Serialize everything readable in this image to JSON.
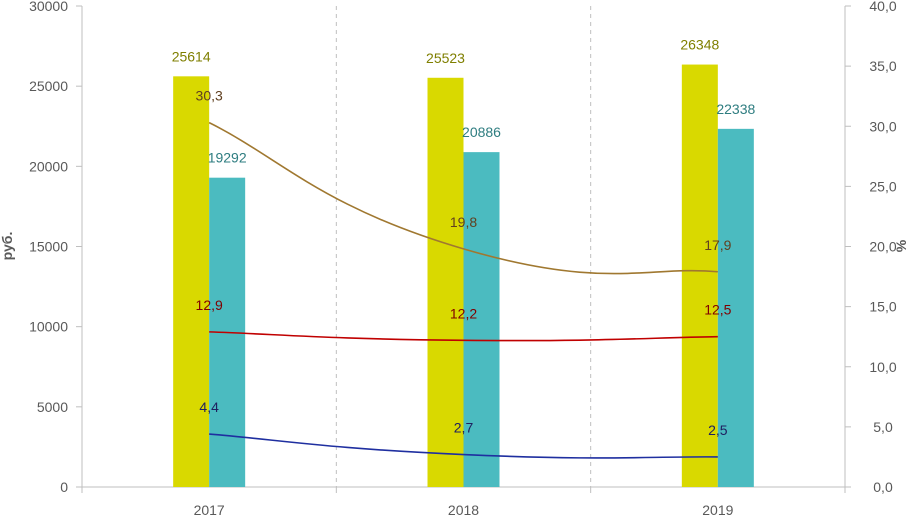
{
  "chart_data": {
    "type": "bar",
    "categories": [
      "2017",
      "2018",
      "2019"
    ],
    "ylabel": "руб.",
    "ylim": [
      0,
      30000
    ],
    "yticks": [
      0,
      5000,
      10000,
      15000,
      20000,
      25000,
      30000
    ],
    "y2label": "%",
    "y2lim": [
      0,
      40
    ],
    "y2ticks": [
      "0,0",
      "5,0",
      "10,0",
      "15,0",
      "20,0",
      "25,0",
      "30,0",
      "35,0",
      "40,0"
    ],
    "bar_series": [
      {
        "values": [
          25614,
          25523,
          26348
        ],
        "labels": [
          "25614",
          "25523",
          "26348"
        ],
        "color": "#d9d900",
        "label_color": "#7f7f00"
      },
      {
        "values": [
          19292,
          20886,
          22338
        ],
        "labels": [
          "19292",
          "20886",
          "22338"
        ],
        "color": "#4bbbc0",
        "label_color": "#2e7d80"
      }
    ],
    "line_series": [
      {
        "values": [
          30.3,
          19.8,
          17.9
        ],
        "labels": [
          "30,3",
          "19,8",
          "17,9"
        ],
        "color": "#a07830",
        "label_color": "#604020"
      },
      {
        "values": [
          12.9,
          12.2,
          12.5
        ],
        "labels": [
          "12,9",
          "12,2",
          "12,5"
        ],
        "color": "#c00000",
        "label_color": "#800000"
      },
      {
        "values": [
          4.4,
          2.7,
          2.5
        ],
        "labels": [
          "4,4",
          "2,7",
          "2,5"
        ],
        "color": "#1f2fa0",
        "label_color": "#1f2060"
      }
    ],
    "grid": "vertical-dashed-separators",
    "legend": "none"
  }
}
